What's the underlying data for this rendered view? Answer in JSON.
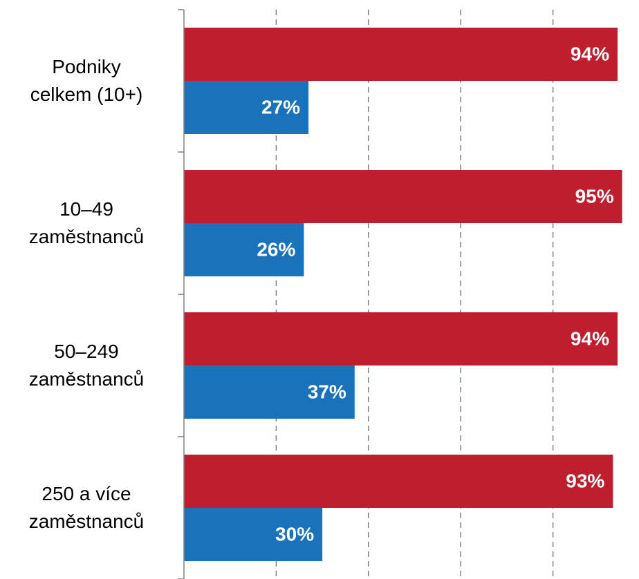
{
  "chart_data": {
    "type": "barh",
    "categories": [
      "Podniky\ncelkem (10+)",
      "10–49\nzaměstnanců",
      "50–249\nzaměstnanců",
      "250 a více\nzaměstnanců"
    ],
    "series": [
      {
        "color": "#be1e2d",
        "values": [
          94,
          95,
          94,
          93
        ],
        "value_labels": [
          "94%",
          "95%",
          "94%",
          "93%"
        ]
      },
      {
        "color": "#1a72bb",
        "values": [
          27,
          26,
          37,
          30
        ],
        "value_labels": [
          "27%",
          "26%",
          "37%",
          "30%"
        ]
      }
    ],
    "xlim": [
      0,
      100
    ],
    "xticks": [
      20,
      40,
      60,
      80
    ],
    "grid": true
  }
}
